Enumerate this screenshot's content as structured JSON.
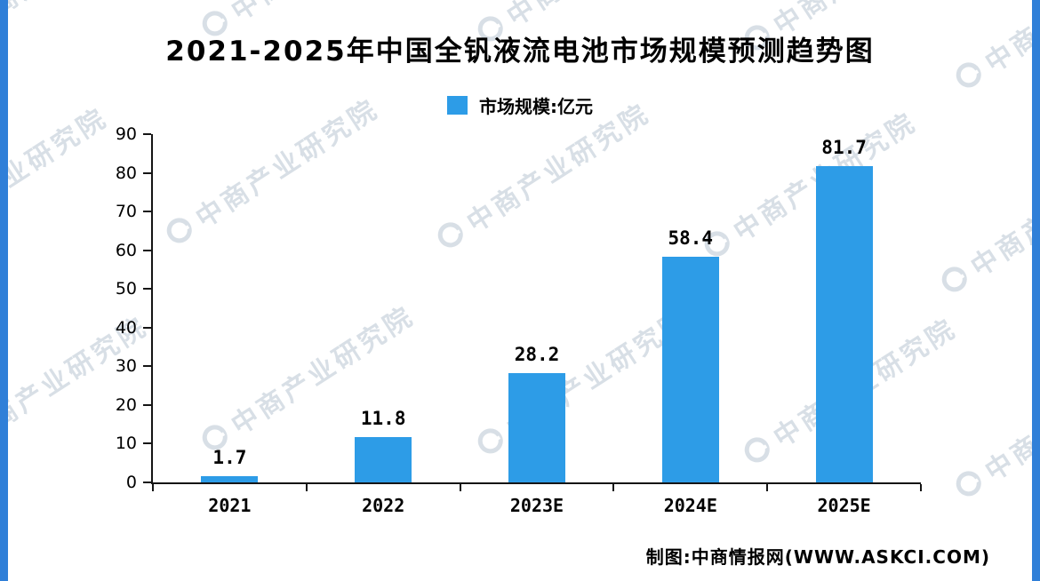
{
  "page": {
    "footer": "制图:中商情报网(WWW.ASKCI.COM)",
    "watermark_text": "中商产业研究院"
  },
  "colors": {
    "bar": "#2D9CE7",
    "side_strip": "#2F7FD8",
    "axis": "#151515"
  },
  "chart_data": {
    "type": "bar",
    "title": "2021-2025年中国全钒液流电池市场规模预测趋势图",
    "legend": "市场规模:亿元",
    "categories": [
      "2021",
      "2022",
      "2023E",
      "2024E",
      "2025E"
    ],
    "values": [
      1.7,
      11.8,
      28.2,
      58.4,
      81.7
    ],
    "xlabel": "",
    "ylabel": "",
    "ylim": [
      0,
      90
    ],
    "ytick_step": 10,
    "grid": false,
    "legend_position": "top-center"
  }
}
